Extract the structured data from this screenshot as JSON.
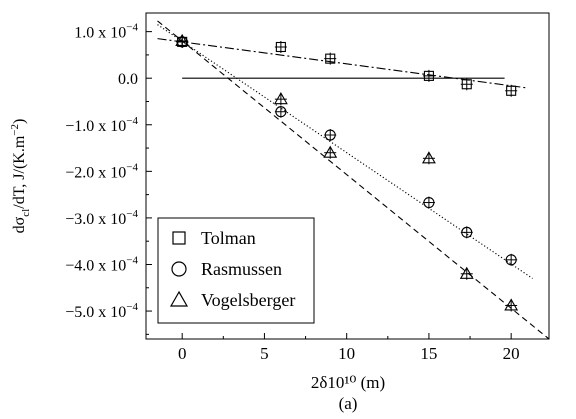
{
  "chart_data": {
    "type": "scatter",
    "panel_label": "(a)",
    "xlabel": "2δ10¹⁰ (m)",
    "ylabel": "dσ_cl/dT, J/(K.m⁻²)",
    "xlim": [
      -2.2,
      22.3
    ],
    "ylim": [
      -0.00056,
      0.00014
    ],
    "x_ticks": [
      0,
      5,
      10,
      15,
      20
    ],
    "y_ticks": [
      {
        "value": 0.0001,
        "mantissa": "1.0",
        "sci": true
      },
      {
        "value": 0.0,
        "mantissa": "0.0",
        "sci": false
      },
      {
        "value": -0.0001,
        "mantissa": "−1.0",
        "sci": true
      },
      {
        "value": -0.0002,
        "mantissa": "−2.0",
        "sci": true
      },
      {
        "value": -0.0003,
        "mantissa": "−3.0",
        "sci": true
      },
      {
        "value": -0.0004,
        "mantissa": "−4.0",
        "sci": true
      },
      {
        "value": -0.0005,
        "mantissa": "−5.0",
        "sci": true
      }
    ],
    "y_tick_suffix": " x 10",
    "y_tick_exponent": "−4",
    "zero_line": {
      "x": [
        0,
        19.6
      ],
      "y": 0.0
    },
    "legend_position": "bottom-left",
    "series": [
      {
        "name": "Tolman",
        "marker": "square",
        "x": [
          0,
          6,
          9,
          15,
          17.3,
          20
        ],
        "y": [
          7.8e-05,
          6.7e-05,
          4.2e-05,
          5e-06,
          -1.3e-05,
          -2.7e-05
        ],
        "fit": {
          "style": "dashdot",
          "x": [
            -1.5,
            21
          ],
          "y": [
            8.5e-05,
            -2.1e-05
          ]
        }
      },
      {
        "name": "Rasmussen",
        "marker": "circle",
        "x": [
          0,
          6,
          9,
          15,
          17.3,
          20
        ],
        "y": [
          7.8e-05,
          -7.2e-05,
          -0.000122,
          -0.000267,
          -0.000331,
          -0.00039
        ],
        "fit": {
          "style": "dotted",
          "x": [
            -1.5,
            21.3
          ],
          "y": [
            0.000115,
            -0.00043
          ]
        }
      },
      {
        "name": "Vogelsberger",
        "marker": "triangle",
        "x": [
          0,
          6,
          9,
          15,
          17.3,
          20
        ],
        "y": [
          8e-05,
          -4.5e-05,
          -0.00016,
          -0.000172,
          -0.00042,
          -0.000488
        ],
        "fit": {
          "style": "dashed",
          "x": [
            -1.5,
            22.3
          ],
          "y": [
            0.000123,
            -0.00056
          ]
        }
      }
    ]
  }
}
